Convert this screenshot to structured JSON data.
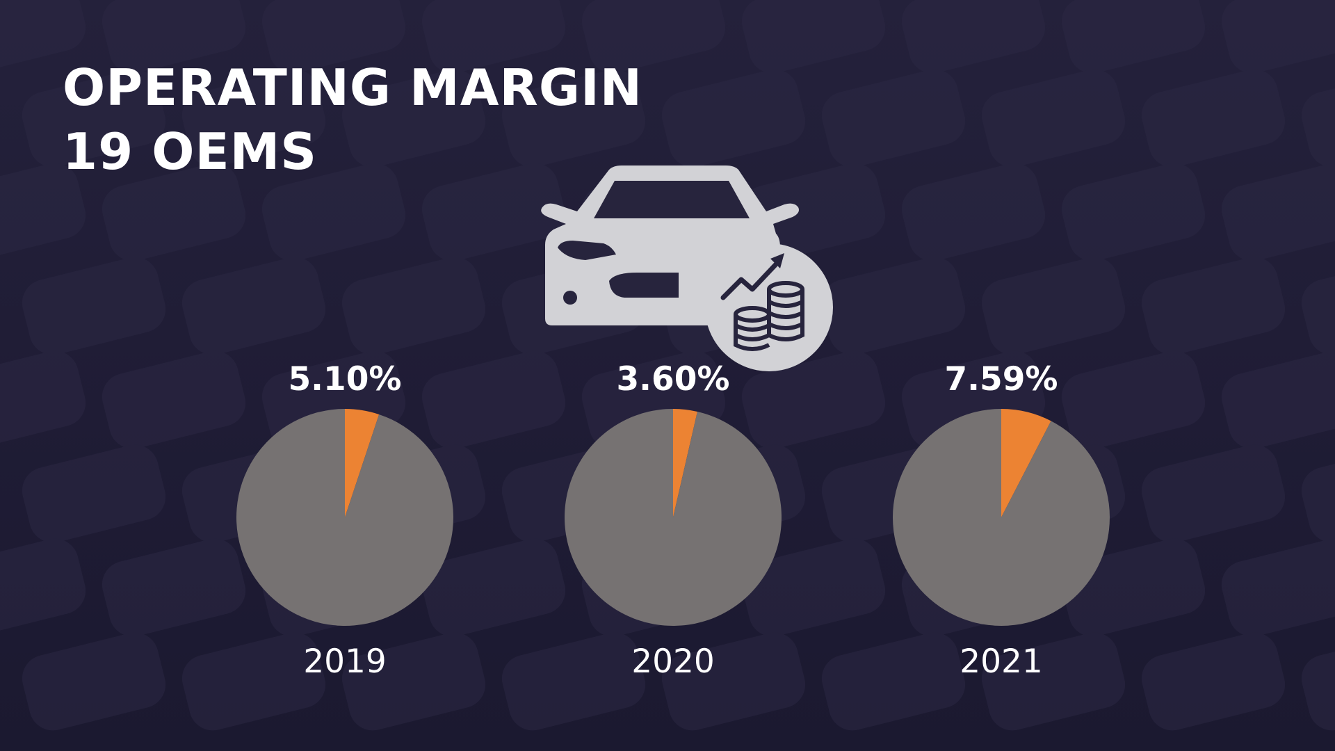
{
  "slide": {
    "title_line1": "OPERATING MARGIN",
    "title_line2": "19 OEMS",
    "hero_icon": "car-with-rising-coins-icon"
  },
  "colors": {
    "background": "#1f1c35",
    "pie_rest": "#767272",
    "pie_margin": "#ec8333",
    "icon": "#d2d2d6",
    "text": "#ffffff"
  },
  "chart_data": [
    {
      "type": "pie",
      "category": "2019",
      "value_label": "5.10%",
      "slices": [
        {
          "value": 5.1,
          "color": "#ec8333"
        },
        {
          "value": 94.9,
          "color": "#767272"
        }
      ]
    },
    {
      "type": "pie",
      "category": "2020",
      "value_label": "3.60%",
      "slices": [
        {
          "value": 3.6,
          "color": "#ec8333"
        },
        {
          "value": 96.4,
          "color": "#767272"
        }
      ]
    },
    {
      "type": "pie",
      "category": "2021",
      "value_label": "7.59%",
      "slices": [
        {
          "value": 7.59,
          "color": "#ec8333"
        },
        {
          "value": 92.41,
          "color": "#767272"
        }
      ]
    }
  ]
}
